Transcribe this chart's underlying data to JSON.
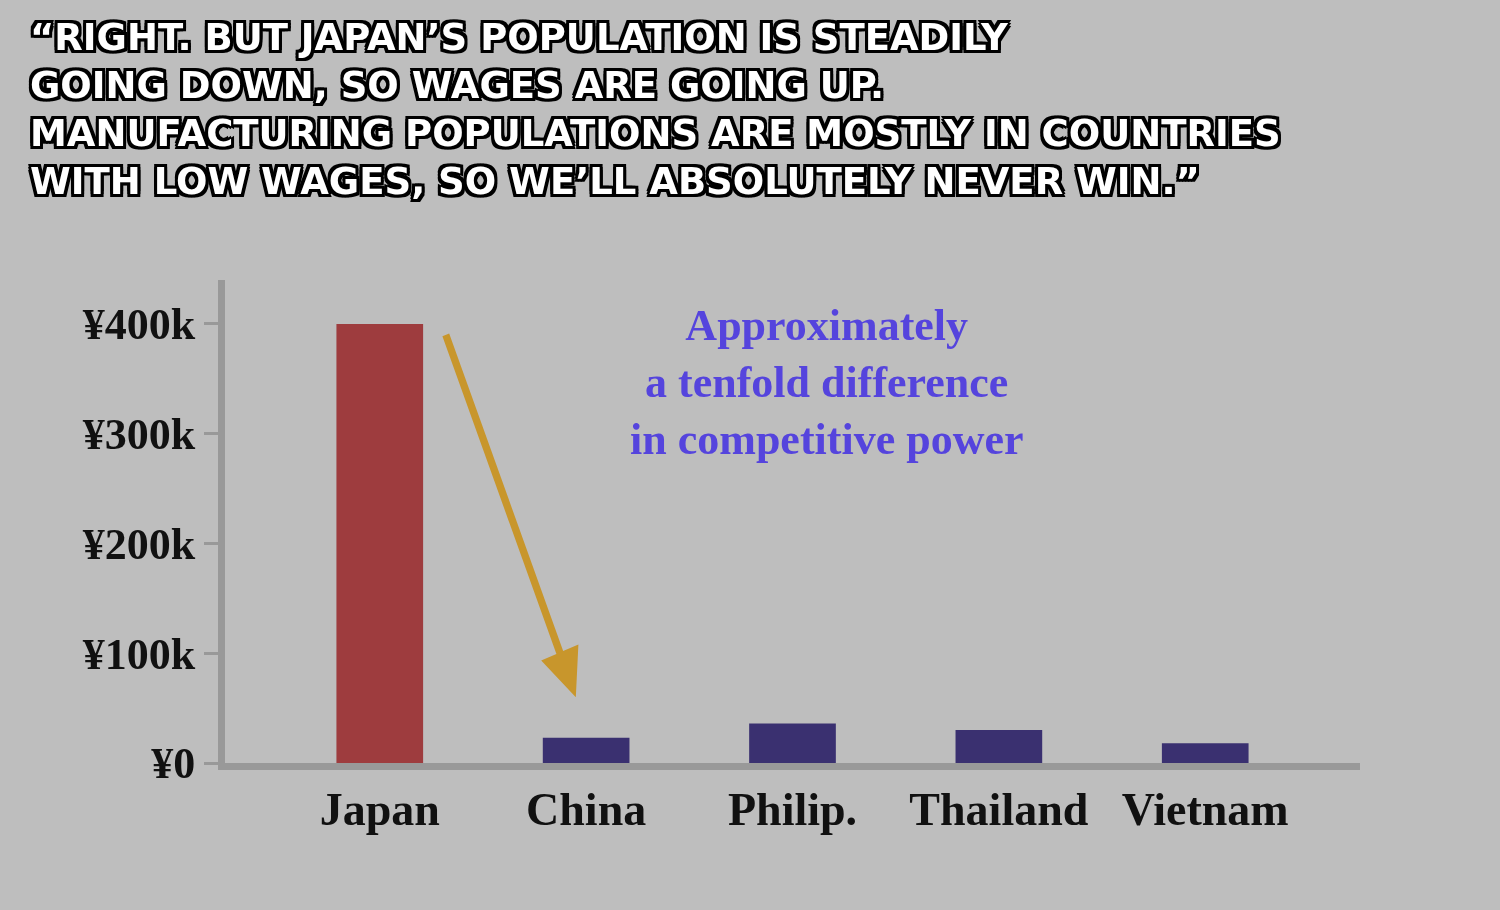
{
  "chart_data": {
    "type": "bar",
    "title": "“RIGHT. BUT JAPAN’S POPULATION IS STEADILY\nGOING DOWN, SO WAGES ARE GOING UP.\nMANUFACTURING POPULATIONS ARE MOSTLY IN COUNTRIES\nWITH LOW WAGES, SO WE’LL ABSOLUTELY NEVER WIN.”",
    "categories": [
      "Japan",
      "China",
      "Philip.",
      "Thailand",
      "Vietnam"
    ],
    "values": [
      400,
      23,
      36,
      30,
      18
    ],
    "colors": [
      "#9e3c3e",
      "#3a3070",
      "#3a3070",
      "#3a3070",
      "#3a3070"
    ],
    "ylim": [
      0,
      440
    ],
    "yticks": [
      {
        "value": 0,
        "label": "¥0"
      },
      {
        "value": 100,
        "label": "¥100k"
      },
      {
        "value": 200,
        "label": "¥200k"
      },
      {
        "value": 300,
        "label": "¥300k"
      },
      {
        "value": 400,
        "label": "¥400k"
      }
    ],
    "annotations": [
      "Approximately\na tenfold difference\nin competitive power"
    ],
    "grid": false,
    "legend": false
  }
}
